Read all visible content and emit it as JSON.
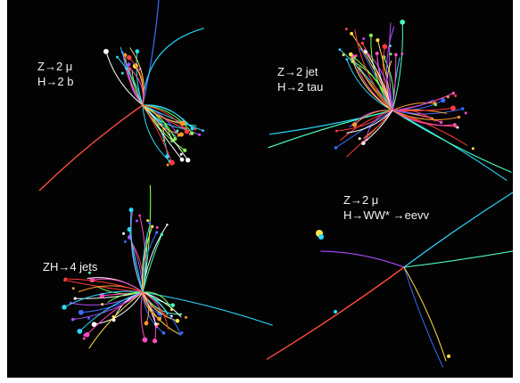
{
  "figure": {
    "panels": [
      {
        "id": "event-1",
        "lines": [
          "Z→2 μ",
          "H→2 b"
        ]
      },
      {
        "id": "event-2",
        "lines": [
          "Z→2 jet",
          "H→2 tau"
        ]
      },
      {
        "id": "event-3",
        "lines": [
          "Z→2 μ",
          "H→WW* →eevv"
        ]
      },
      {
        "id": "event-4",
        "lines": [
          "ZH→4 jets"
        ]
      }
    ]
  },
  "colors": {
    "background": "#030303",
    "label_text": "#f2f2f2",
    "tracks": [
      "#ff3b3b",
      "#ff9a2a",
      "#ffe14a",
      "#7cff4a",
      "#2bd9ff",
      "#3a6bff",
      "#b04cff",
      "#ff4cc3",
      "#4affc0",
      "#ffffff"
    ]
  }
}
